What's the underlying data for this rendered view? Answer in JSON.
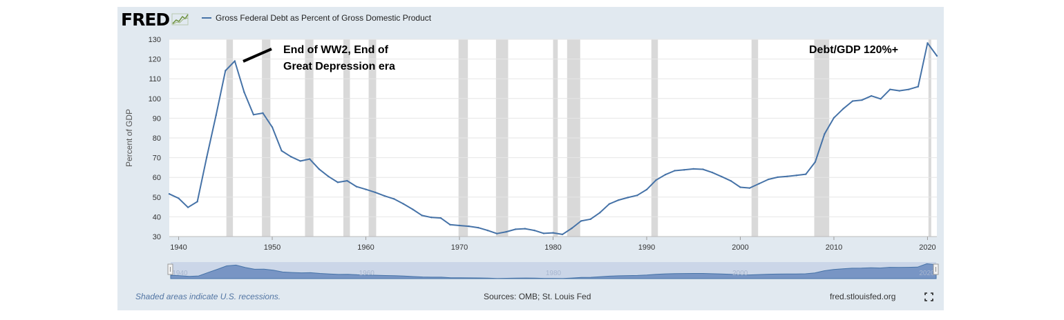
{
  "brand": "FRED",
  "legend_label": "Gross Federal Debt as Percent of Gross Domestic Product",
  "footer": {
    "note": "Shaded areas indicate U.S. recessions.",
    "source": "Sources: OMB; St. Louis Fed",
    "url": "fred.stlouisfed.org"
  },
  "annotations": {
    "ww2_line1": "End of WW2, End of",
    "ww2_line2": "Great Depression era",
    "recent": "Debt/GDP 120%+"
  },
  "icons": {
    "logo_graph": "fred-graph-icon",
    "fullscreen": "fullscreen-icon"
  },
  "colors": {
    "line": "#4572a7",
    "recession": "#d9d9d9",
    "background": "#e1e9f0",
    "plot": "#ffffff"
  },
  "chart_data": {
    "type": "line",
    "title": "",
    "xlabel": "",
    "ylabel": "Percent of GDP",
    "xlim": [
      1939,
      2021
    ],
    "ylim": [
      30,
      130
    ],
    "grid": true,
    "x_ticks": [
      1940,
      1950,
      1960,
      1970,
      1980,
      1990,
      2000,
      2010,
      2020
    ],
    "y_ticks": [
      30,
      40,
      50,
      60,
      70,
      80,
      90,
      100,
      110,
      120,
      130
    ],
    "navigator_ticks": [
      1940,
      1960,
      1980,
      2000,
      2020
    ],
    "recessions": [
      [
        1945.1,
        1945.8
      ],
      [
        1948.9,
        1949.8
      ],
      [
        1953.5,
        1954.4
      ],
      [
        1957.6,
        1958.3
      ],
      [
        1960.3,
        1961.1
      ],
      [
        1969.9,
        1970.9
      ],
      [
        1973.9,
        1975.2
      ],
      [
        1980.0,
        1980.5
      ],
      [
        1981.5,
        1982.9
      ],
      [
        1990.5,
        1991.2
      ],
      [
        2001.2,
        2001.9
      ],
      [
        2007.9,
        2009.5
      ],
      [
        2020.1,
        2020.4
      ]
    ],
    "series": [
      {
        "name": "Gross Federal Debt as Percent of Gross Domestic Product",
        "x": [
          1939,
          1940,
          1941,
          1942,
          1943,
          1944,
          1945,
          1946,
          1947,
          1948,
          1949,
          1950,
          1951,
          1952,
          1953,
          1954,
          1955,
          1956,
          1957,
          1958,
          1959,
          1960,
          1961,
          1962,
          1963,
          1964,
          1965,
          1966,
          1967,
          1968,
          1969,
          1970,
          1971,
          1972,
          1973,
          1974,
          1975,
          1976,
          1977,
          1978,
          1979,
          1980,
          1981,
          1982,
          1983,
          1984,
          1985,
          1986,
          1987,
          1988,
          1989,
          1990,
          1991,
          1992,
          1993,
          1994,
          1995,
          1996,
          1997,
          1998,
          1999,
          2000,
          2001,
          2002,
          2003,
          2004,
          2005,
          2006,
          2007,
          2008,
          2009,
          2010,
          2011,
          2012,
          2013,
          2014,
          2015,
          2016,
          2017,
          2018,
          2019,
          2020,
          2021
        ],
        "values": [
          51.6,
          49.4,
          44.8,
          47.7,
          70.2,
          91.5,
          114.1,
          119.0,
          103.2,
          91.8,
          92.6,
          85.5,
          73.5,
          70.5,
          68.3,
          69.3,
          64.2,
          60.5,
          57.5,
          58.3,
          55.3,
          53.9,
          52.4,
          50.6,
          49.1,
          46.6,
          43.8,
          40.7,
          39.7,
          39.4,
          36.0,
          35.6,
          35.2,
          34.5,
          33.1,
          31.5,
          32.4,
          33.7,
          34.0,
          33.1,
          31.6,
          31.9,
          31.1,
          34.2,
          37.9,
          38.8,
          42.1,
          46.5,
          48.5,
          49.8,
          50.9,
          53.8,
          58.6,
          61.4,
          63.4,
          63.8,
          64.3,
          64.1,
          62.5,
          60.4,
          58.2,
          55.0,
          54.6,
          56.8,
          59.0,
          60.1,
          60.5,
          61.0,
          61.6,
          67.8,
          82.0,
          90.2,
          94.8,
          98.7,
          99.2,
          101.3,
          99.8,
          104.6,
          103.9,
          104.6,
          106.0,
          128.1,
          121.6
        ]
      }
    ]
  }
}
